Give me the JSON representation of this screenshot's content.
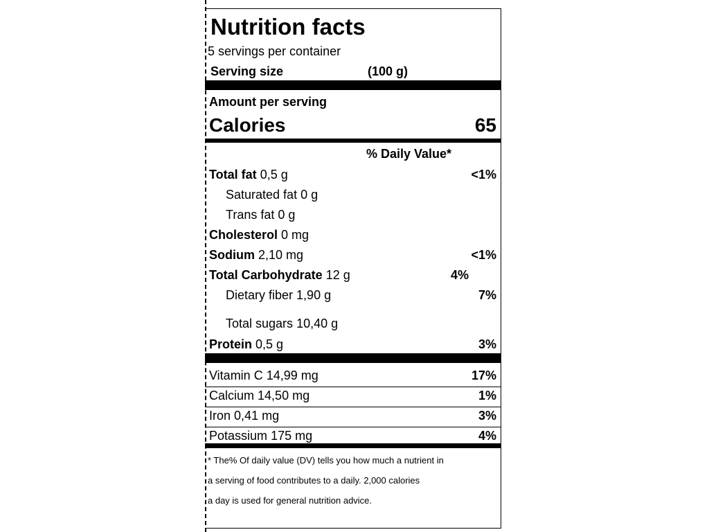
{
  "title": "Nutrition facts",
  "servings_per_container": "5 servings per container",
  "serving_size_label": "Serving size",
  "serving_size_value": "(100 g)",
  "amount_per_serving": "Amount per serving",
  "calories_label": "Calories",
  "calories_value": "65",
  "daily_value_header": "% Daily Value*",
  "nutrients": [
    {
      "name": "Total fat",
      "amount": "0,5 g",
      "dv": "<1%"
    },
    {
      "name": "Saturated fat",
      "amount": "0 g",
      "dv": ""
    },
    {
      "name": "Trans fat",
      "amount": "0 g",
      "dv": ""
    },
    {
      "name": "Cholesterol",
      "amount": "0 mg",
      "dv": ""
    },
    {
      "name": "Sodium",
      "amount": "2,10 mg",
      "dv": "<1%"
    },
    {
      "name": "Total Carbohydrate",
      "amount": "12 g",
      "dv": "4%"
    },
    {
      "name": "Dietary fiber",
      "amount": "1,90 g",
      "dv": "7%"
    },
    {
      "name": "Total sugars",
      "amount": "10,40 g",
      "dv": ""
    },
    {
      "name": "Protein",
      "amount": "0,5 g",
      "dv": "3%"
    }
  ],
  "vitamins": [
    {
      "name": "Vitamin C",
      "amount": "14,99 mg",
      "dv": "17%"
    },
    {
      "name": "Calcium",
      "amount": "14,50 mg",
      "dv": "1%"
    },
    {
      "name": "Iron",
      "amount": "0,41 mg",
      "dv": "3%"
    },
    {
      "name": "Potassium",
      "amount": "175 mg",
      "dv": "4%"
    }
  ],
  "footnote_lines": [
    "* The% Of daily value (DV) tells you how much a nutrient in",
    "a serving of food contributes to a daily. 2,000 calories",
    "a day is used for general nutrition advice."
  ]
}
